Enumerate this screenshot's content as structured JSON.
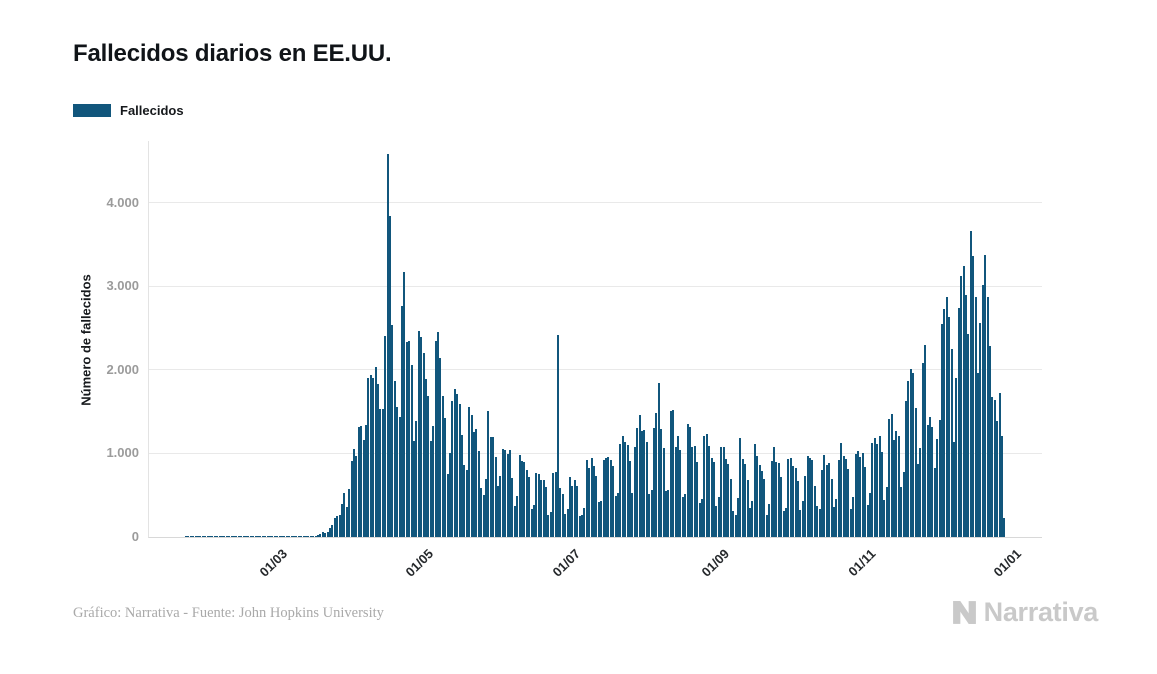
{
  "legend": {
    "items": [
      {
        "label": "Fallecidos"
      }
    ]
  },
  "footer": {
    "credit": "Gráfico: Narrativa - Fuente: John Hopkins University"
  },
  "logo": {
    "text": "Narrativa"
  },
  "colors": {
    "bar": "#11567C",
    "grid": "#e9e9e9",
    "axis_line": "#d8d8d8",
    "y_tick_text": "#9b9b9b",
    "x_tick_text": "#26292c",
    "title_text": "#101418",
    "footer_text": "#a9a9a9",
    "logo_gray": "#c9c9c9"
  },
  "chart_data": {
    "type": "bar",
    "title": "Fallecidos diarios en EE.UU.",
    "ylabel": "Número de fallecidos",
    "xlabel": "",
    "legend_position": "top-left",
    "grid": "horizontal",
    "ylim": [
      0,
      4742
    ],
    "y_tick_values": [
      0,
      1000,
      2000,
      3000,
      4000
    ],
    "y_tick_labels": [
      "0",
      "1.000",
      "2.000",
      "3.000",
      "4.000"
    ],
    "x_tick_labels": [
      "01/03",
      "01/05",
      "01/07",
      "01/09",
      "01/11",
      "01/01"
    ],
    "x_tick_dates": [
      "2020-03-01",
      "2020-05-01",
      "2020-07-01",
      "2020-09-01",
      "2020-11-01",
      "2021-01-01"
    ],
    "frequency": "daily",
    "start_date": "2020-01-22",
    "end_date": "2020-12-28",
    "series": [
      {
        "name": "Fallecidos",
        "values": [
          0,
          0,
          0,
          0,
          0,
          0,
          0,
          0,
          0,
          0,
          0,
          0,
          0,
          0,
          0,
          0,
          0,
          0,
          0,
          0,
          0,
          0,
          0,
          0,
          0,
          0,
          0,
          0,
          0,
          0,
          0,
          0,
          0,
          0,
          0,
          0,
          0,
          0,
          1,
          1,
          4,
          3,
          2,
          3,
          4,
          3,
          4,
          4,
          6,
          7,
          9,
          8,
          11,
          11,
          18,
          26,
          42,
          57,
          50,
          66,
          111,
          141,
          225,
          246,
          268,
          401,
          525,
          363,
          573,
          912,
          1059,
          974,
          1321,
          1330,
          1165,
          1342,
          1906,
          1943,
          1900,
          2035,
          1830,
          1528,
          1535,
          2405,
          4591,
          3846,
          2535,
          1867,
          1561,
          1433,
          2765,
          3179,
          2341,
          2350,
          2065,
          1150,
          1384,
          2470,
          2390,
          2201,
          1897,
          1691,
          1154,
          1324,
          2350,
          2455,
          2144,
          1687,
          1422,
          750,
          1008,
          1630,
          1772,
          1715,
          1595,
          1218,
          865,
          808,
          1552,
          1461,
          1263,
          1293,
          1035,
          592,
          505,
          693,
          1505,
          1199,
          1193,
          960,
          605,
          730,
          1052,
          1036,
          995,
          1036,
          709,
          373,
          497,
          979,
          906,
          898,
          803,
          713,
          330,
          389,
          770,
          760,
          684,
          677,
          594,
          267,
          298,
          771,
          775,
          2425,
          589,
          512,
          271,
          335,
          724,
          616,
          677,
          614,
          254,
          263,
          351,
          926,
          822,
          950,
          849,
          730,
          414,
          432,
          926,
          943,
          963,
          918,
          853,
          490,
          530,
          1118,
          1205,
          1135,
          1101,
          916,
          532,
          1076,
          1300,
          1462,
          1266,
          1276,
          1133,
          515,
          565,
          1302,
          1483,
          1850,
          1290,
          1064,
          546,
          561,
          1504,
          1515,
          1076,
          1210,
          1046,
          480,
          518,
          1358,
          1322,
          1074,
          1094,
          900,
          410,
          458,
          1205,
          1239,
          1084,
          943,
          900,
          369,
          480,
          1083,
          1080,
          934,
          880,
          698,
          316,
          268,
          463,
          1180,
          937,
          871,
          678,
          350,
          426,
          1119,
          973,
          868,
          795,
          695,
          268,
          392,
          916,
          1076,
          902,
          882,
          717,
          312,
          344,
          931,
          942,
          856,
          832,
          669,
          318,
          427,
          733,
          968,
          950,
          925,
          615,
          372,
          336,
          802,
          988,
          857,
          881,
          693,
          364,
          453,
          926,
          1128,
          975,
          933,
          820,
          340,
          477,
          990,
          1028,
          963,
          1002,
          834,
          386,
          533,
          1122,
          1187,
          1114,
          1208,
          1018,
          447,
          597,
          1417,
          1471,
          1158,
          1266,
          1204,
          601,
          773,
          1631,
          1866,
          2015,
          1963,
          1541,
          873,
          1066,
          2089,
          2297,
          1340,
          1433,
          1320,
          826,
          1173,
          1404,
          2546,
          2733,
          2879,
          2637,
          2254,
          1138,
          1904,
          2746,
          3124,
          3240,
          2902,
          2430,
          3670,
          3365,
          2877,
          1962,
          2566,
          3019,
          3380,
          2880,
          2289,
          1679,
          1640,
          1389,
          1730,
          1204,
          230
        ]
      }
    ]
  }
}
